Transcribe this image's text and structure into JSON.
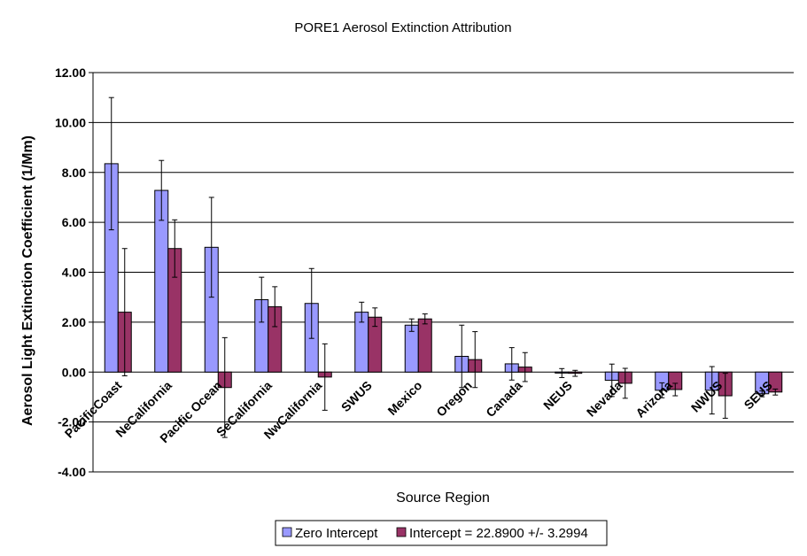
{
  "chart_data": {
    "type": "bar",
    "title": "PORE1 Aerosol Extinction Attribution",
    "xlabel": "Source Region",
    "ylabel": "Aerosol Light Extinction Coefficient (1/Mm)",
    "ylim": [
      -4,
      12
    ],
    "ytick_step": 2,
    "ytick_labels": [
      "-4.00",
      "-2.00",
      "0.00",
      "2.00",
      "4.00",
      "6.00",
      "8.00",
      "10.00",
      "12.00"
    ],
    "grid": true,
    "legend_position": "bottom",
    "categories": [
      "PacificCoast",
      "NeCalifornia",
      "Pacific Ocean",
      "SeCalifornia",
      "NwCalifornia",
      "SWUS",
      "Mexico",
      "Oregon",
      "Canada",
      "NEUS",
      "Nevada",
      "Arizona",
      "NWUS",
      "SEUS"
    ],
    "series": [
      {
        "name": "Zero Intercept",
        "color": "#9999ff",
        "values": [
          8.35,
          7.28,
          5.0,
          2.9,
          2.75,
          2.4,
          1.88,
          0.63,
          0.33,
          -0.04,
          -0.33,
          -0.73,
          -0.73,
          -0.87
        ],
        "error": [
          2.65,
          1.2,
          2.0,
          0.9,
          1.4,
          0.4,
          0.25,
          1.25,
          0.65,
          0.18,
          0.65,
          0.3,
          0.95,
          0.12
        ]
      },
      {
        "name": "Intercept = 22.8900 +/- 3.2994",
        "color": "#993366",
        "values": [
          2.4,
          4.95,
          -0.62,
          2.62,
          -0.2,
          2.2,
          2.13,
          0.5,
          0.2,
          -0.05,
          -0.45,
          -0.7,
          -0.95,
          -0.8
        ],
        "error": [
          2.55,
          1.15,
          2.0,
          0.8,
          1.33,
          0.37,
          0.2,
          1.12,
          0.58,
          0.12,
          0.6,
          0.25,
          0.9,
          0.12
        ]
      }
    ]
  }
}
